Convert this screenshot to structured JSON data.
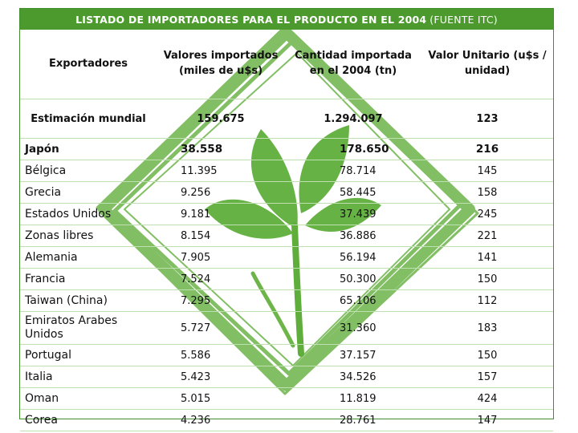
{
  "title": {
    "main": "LISTADO DE IMPORTADORES PARA EL PRODUCTO EN EL 2004",
    "source": "(FUENTE ITC)"
  },
  "headers": {
    "exporters": "Exportadores",
    "value": "Valores importados (miles de u$s)",
    "quantity": "Cantidad importada en el 2004 (tn)",
    "unit_value": "Valor Unitario (u$s / unidad)"
  },
  "world": {
    "name": "Estimación mundial",
    "value": "159.675",
    "quantity": "1.294.097",
    "unit": "123"
  },
  "rows": [
    {
      "name": "Japón",
      "value": "38.558",
      "quantity": "178.650",
      "unit": "216"
    },
    {
      "name": "Bélgica",
      "value": "11.395",
      "quantity": "78.714",
      "unit": "145"
    },
    {
      "name": "Grecia",
      "value": "9.256",
      "quantity": "58.445",
      "unit": "158"
    },
    {
      "name": "Estados Unidos",
      "value": "9.181",
      "quantity": "37.439",
      "unit": "245"
    },
    {
      "name": "Zonas libres",
      "value": "8.154",
      "quantity": "36.886",
      "unit": "221"
    },
    {
      "name": "Alemania",
      "value": "7.905",
      "quantity": "56.194",
      "unit": "141"
    },
    {
      "name": "Francia",
      "value": "7.524",
      "quantity": "50.300",
      "unit": "150"
    },
    {
      "name": "Taiwan (China)",
      "value": "7.295",
      "quantity": "65.106",
      "unit": "112"
    },
    {
      "name": "Emiratos Arabes Unidos",
      "value": "5.727",
      "quantity": "31.360",
      "unit": "183"
    },
    {
      "name": "Portugal",
      "value": "5.586",
      "quantity": "37.157",
      "unit": "150"
    },
    {
      "name": "Italia",
      "value": "5.423",
      "quantity": "34.526",
      "unit": "157"
    },
    {
      "name": "Oman",
      "value": "5.015",
      "quantity": "11.819",
      "unit": "424"
    },
    {
      "name": "Corea",
      "value": "4.236",
      "quantity": "28.761",
      "unit": "147"
    }
  ],
  "colors": {
    "accent": "#4c9a2e",
    "watermark": "#5fae3c"
  },
  "watermark_icon": "leaf-sprout-diamond-logo"
}
